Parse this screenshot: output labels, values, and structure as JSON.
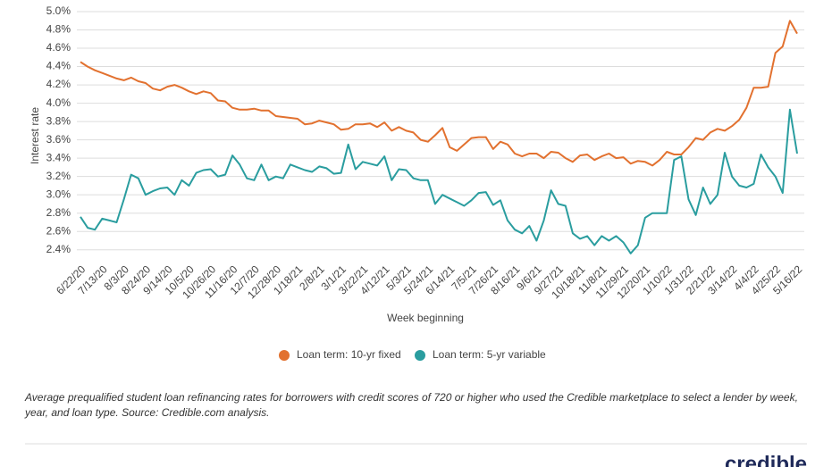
{
  "chart_data": {
    "type": "line",
    "ylabel": "Interest rate",
    "xlabel": "Week beginning",
    "categories": [
      "6/22/20",
      null,
      null,
      "7/13/20",
      null,
      null,
      "8/3/20",
      null,
      null,
      "8/24/20",
      null,
      null,
      "9/14/20",
      null,
      null,
      "10/5/20",
      null,
      null,
      "10/26/20",
      null,
      null,
      "11/16/20",
      null,
      null,
      "12/7/20",
      null,
      null,
      "12/28/20",
      null,
      null,
      "1/18/21",
      null,
      null,
      "2/8/21",
      null,
      null,
      "3/1/21",
      null,
      null,
      "3/22/21",
      null,
      null,
      "4/12/21",
      null,
      null,
      "5/3/21",
      null,
      null,
      "5/24/21",
      null,
      null,
      "6/14/21",
      null,
      null,
      "7/5/21",
      null,
      null,
      "7/26/21",
      null,
      null,
      "8/16/21",
      null,
      null,
      "9/6/21",
      null,
      null,
      "9/27/21",
      null,
      null,
      "10/18/21",
      null,
      null,
      "11/8/21",
      null,
      null,
      "11/29/21",
      null,
      null,
      "12/20/21",
      null,
      null,
      "1/10/22",
      null,
      null,
      "1/31/22",
      null,
      null,
      "2/21/22",
      null,
      null,
      "3/14/22",
      null,
      null,
      "4/4/22",
      null,
      null,
      "4/25/22",
      null,
      null,
      "5/16/22"
    ],
    "series": [
      {
        "name": "Loan term: 10-yr fixed",
        "color": "#e2712f",
        "values": [
          4.45,
          4.4,
          4.36,
          4.33,
          4.3,
          4.27,
          4.25,
          4.28,
          4.24,
          4.22,
          4.16,
          4.14,
          4.18,
          4.2,
          4.17,
          4.13,
          4.1,
          4.13,
          4.11,
          4.03,
          4.02,
          3.95,
          3.93,
          3.93,
          3.94,
          3.92,
          3.92,
          3.86,
          3.85,
          3.84,
          3.83,
          3.77,
          3.78,
          3.81,
          3.79,
          3.77,
          3.71,
          3.72,
          3.77,
          3.77,
          3.78,
          3.74,
          3.79,
          3.7,
          3.74,
          3.7,
          3.68,
          3.6,
          3.58,
          3.65,
          3.73,
          3.52,
          3.48,
          3.55,
          3.62,
          3.63,
          3.63,
          3.5,
          3.58,
          3.55,
          3.45,
          3.42,
          3.45,
          3.45,
          3.4,
          3.47,
          3.46,
          3.4,
          3.36,
          3.43,
          3.44,
          3.38,
          3.42,
          3.45,
          3.4,
          3.41,
          3.34,
          3.37,
          3.36,
          3.32,
          3.38,
          3.47,
          3.44,
          3.44,
          3.52,
          3.62,
          3.6,
          3.68,
          3.72,
          3.7,
          3.75,
          3.82,
          3.95,
          4.17,
          4.17,
          4.18,
          4.55,
          4.62,
          4.9,
          4.76
        ]
      },
      {
        "name": "Loan term: 5-yr variable",
        "color": "#2a9d9f",
        "values": [
          2.76,
          2.64,
          2.62,
          2.74,
          2.72,
          2.7,
          2.95,
          3.22,
          3.18,
          3.0,
          3.04,
          3.07,
          3.08,
          3.0,
          3.16,
          3.1,
          3.24,
          3.27,
          3.28,
          3.2,
          3.22,
          3.43,
          3.33,
          3.18,
          3.16,
          3.33,
          3.16,
          3.2,
          3.18,
          3.33,
          3.3,
          3.27,
          3.25,
          3.31,
          3.29,
          3.23,
          3.24,
          3.55,
          3.28,
          3.36,
          3.34,
          3.32,
          3.42,
          3.16,
          3.28,
          3.27,
          3.18,
          3.16,
          3.16,
          2.9,
          3.0,
          2.96,
          2.92,
          2.88,
          2.94,
          3.02,
          3.03,
          2.89,
          2.94,
          2.72,
          2.62,
          2.58,
          2.66,
          2.5,
          2.72,
          3.05,
          2.9,
          2.88,
          2.58,
          2.52,
          2.55,
          2.45,
          2.55,
          2.5,
          2.55,
          2.48,
          2.36,
          2.45,
          2.75,
          2.8,
          2.8,
          2.8,
          3.38,
          3.42,
          2.95,
          2.78,
          3.08,
          2.9,
          3.0,
          3.46,
          3.2,
          3.1,
          3.08,
          3.12,
          3.44,
          3.3,
          3.2,
          3.02,
          3.93,
          3.45
        ]
      }
    ],
    "ylim": [
      2.3,
      5.0
    ],
    "yticks": [
      {
        "value": 2.4,
        "label": "2.4%"
      },
      {
        "value": 2.6,
        "label": "2.6%"
      },
      {
        "value": 2.8,
        "label": "2.8%"
      },
      {
        "value": 3.0,
        "label": "3.0%"
      },
      {
        "value": 3.2,
        "label": "3.2%"
      },
      {
        "value": 3.4,
        "label": "3.4%"
      },
      {
        "value": 3.6,
        "label": "3.6%"
      },
      {
        "value": 3.8,
        "label": "3.8%"
      },
      {
        "value": 4.0,
        "label": "4.0%"
      },
      {
        "value": 4.2,
        "label": "4.2%"
      },
      {
        "value": 4.4,
        "label": "4.4%"
      },
      {
        "value": 4.6,
        "label": "4.6%"
      },
      {
        "value": 4.8,
        "label": "4.8%"
      },
      {
        "value": 5.0,
        "label": "5.0%"
      }
    ],
    "grid": true,
    "legend": "bottom",
    "caption": "Average prequalified student loan refinancing rates for borrowers with credit scores of 720 or higher who used the Credible marketplace to select a lender by week, year, and loan type. Source: Credible.com analysis.",
    "logo": "credible"
  }
}
